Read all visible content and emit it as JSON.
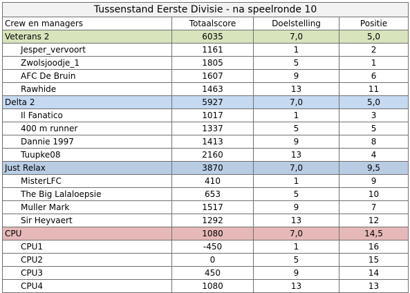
{
  "title": "Tussenstand Eerste Divisie - na speelronde 10",
  "headers": [
    "Crew en managers",
    "Totaalscore",
    "Doelstelling",
    "Positie"
  ],
  "colors": {
    "team1_bg": "#d8e4bc",
    "team2_bg": "#c5d9f1",
    "team3_bg": "#b8cce4",
    "team4_bg": "#e6b9b8",
    "grid": "#6f6f6f"
  },
  "rows": [
    [
      "Veterans 2",
      "6035",
      "7,0",
      "5,0"
    ],
    [
      "Jesper_vervoort",
      "1161",
      "1",
      "2"
    ],
    [
      "Zwolsjoodje_1",
      "1805",
      "5",
      "1"
    ],
    [
      "AFC De Bruin",
      "1607",
      "9",
      "6"
    ],
    [
      "Rawhide",
      "1463",
      "13",
      "11"
    ],
    [
      "Delta 2",
      "5927",
      "7,0",
      "5,0"
    ],
    [
      "Il Fanatico",
      "1017",
      "1",
      "3"
    ],
    [
      "400 m runner",
      "1337",
      "5",
      "5"
    ],
    [
      "Dannie 1997",
      "1413",
      "9",
      "8"
    ],
    [
      "Tuupke08",
      "2160",
      "13",
      "4"
    ],
    [
      "Just Relax",
      "3870",
      "7,0",
      "9,5"
    ],
    [
      "MisterLFC",
      "410",
      "1",
      "9"
    ],
    [
      "The Big Lalaloepsie",
      "653",
      "5",
      "10"
    ],
    [
      "Muller Mark",
      "1517",
      "9",
      "7"
    ],
    [
      "Sir Heyvaert",
      "1292",
      "13",
      "12"
    ],
    [
      "CPU",
      "1080",
      "7,0",
      "14,5"
    ],
    [
      "CPU1",
      "-450",
      "1",
      "16"
    ],
    [
      "CPU2",
      "0",
      "5",
      "15"
    ],
    [
      "CPU3",
      "450",
      "9",
      "14"
    ],
    [
      "CPU4",
      "1080",
      "13",
      "13"
    ]
  ]
}
